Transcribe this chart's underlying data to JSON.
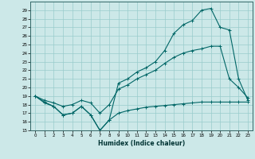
{
  "xlabel": "Humidex (Indice chaleur)",
  "xlim": [
    -0.5,
    23.5
  ],
  "ylim": [
    15,
    30
  ],
  "yticks": [
    15,
    16,
    17,
    18,
    19,
    20,
    21,
    22,
    23,
    24,
    25,
    26,
    27,
    28,
    29
  ],
  "xticks": [
    0,
    1,
    2,
    3,
    4,
    5,
    6,
    7,
    8,
    9,
    10,
    11,
    12,
    13,
    14,
    15,
    16,
    17,
    18,
    19,
    20,
    21,
    22,
    23
  ],
  "bg_color": "#cce8e8",
  "line_color": "#006666",
  "line1_x": [
    0,
    1,
    2,
    3,
    4,
    5,
    6,
    7,
    8,
    9,
    10,
    11,
    12,
    13,
    14,
    15,
    16,
    17,
    18,
    19,
    20,
    21,
    22,
    23
  ],
  "line1_y": [
    19.0,
    18.2,
    17.8,
    16.8,
    17.0,
    17.8,
    16.8,
    15.0,
    16.2,
    20.5,
    21.0,
    21.8,
    22.3,
    23.0,
    24.3,
    26.3,
    27.3,
    27.8,
    29.0,
    29.2,
    27.0,
    26.7,
    21.0,
    18.5
  ],
  "line2_x": [
    0,
    1,
    2,
    3,
    4,
    5,
    6,
    7,
    8,
    9,
    10,
    11,
    12,
    13,
    14,
    15,
    16,
    17,
    18,
    19,
    20,
    21,
    22,
    23
  ],
  "line2_y": [
    19.0,
    18.3,
    17.8,
    16.8,
    17.0,
    17.8,
    16.8,
    15.0,
    16.2,
    17.0,
    17.3,
    17.5,
    17.7,
    17.8,
    17.9,
    18.0,
    18.1,
    18.2,
    18.3,
    18.3,
    18.3,
    18.3,
    18.3,
    18.3
  ],
  "line3_x": [
    0,
    1,
    2,
    3,
    4,
    5,
    6,
    7,
    8,
    9,
    10,
    11,
    12,
    13,
    14,
    15,
    16,
    17,
    18,
    19,
    20,
    21,
    22,
    23
  ],
  "line3_y": [
    19.0,
    18.5,
    18.2,
    17.8,
    18.0,
    18.5,
    18.2,
    17.0,
    18.0,
    19.8,
    20.3,
    21.0,
    21.5,
    22.0,
    22.8,
    23.5,
    24.0,
    24.3,
    24.5,
    24.8,
    24.8,
    21.0,
    20.0,
    18.8
  ]
}
